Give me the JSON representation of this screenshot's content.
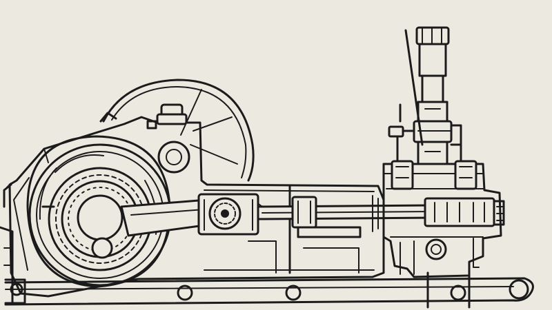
{
  "illustration": {
    "style": "line-drawing",
    "ink_color": "#1b1b1b",
    "paper_color": "#ece9e1"
  }
}
